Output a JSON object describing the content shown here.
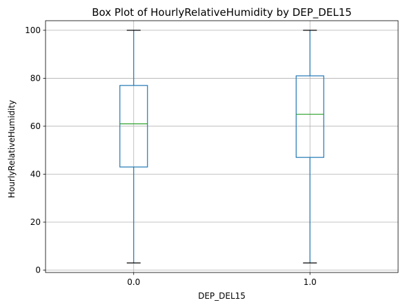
{
  "chart_data": {
    "type": "box",
    "title": "Box Plot of HourlyRelativeHumidity by DEP_DEL15",
    "xlabel": "DEP_DEL15",
    "ylabel": "HourlyRelativeHumidity",
    "categories": [
      "0.0",
      "1.0"
    ],
    "boxes": [
      {
        "category": "0.0",
        "whisker_low": 3,
        "q1": 43,
        "median": 61,
        "q3": 77,
        "whisker_high": 100
      },
      {
        "category": "1.0",
        "whisker_low": 3,
        "q1": 47,
        "median": 65,
        "q3": 81,
        "whisker_high": 100
      }
    ],
    "yticks": [
      0,
      20,
      40,
      60,
      80,
      100
    ],
    "ylim": [
      -1,
      104
    ],
    "grid": true,
    "colors": {
      "box": "#1f77b4",
      "median": "#2ca02c",
      "whisker_cap": "#000000",
      "grid": "#b0b0b0"
    }
  }
}
